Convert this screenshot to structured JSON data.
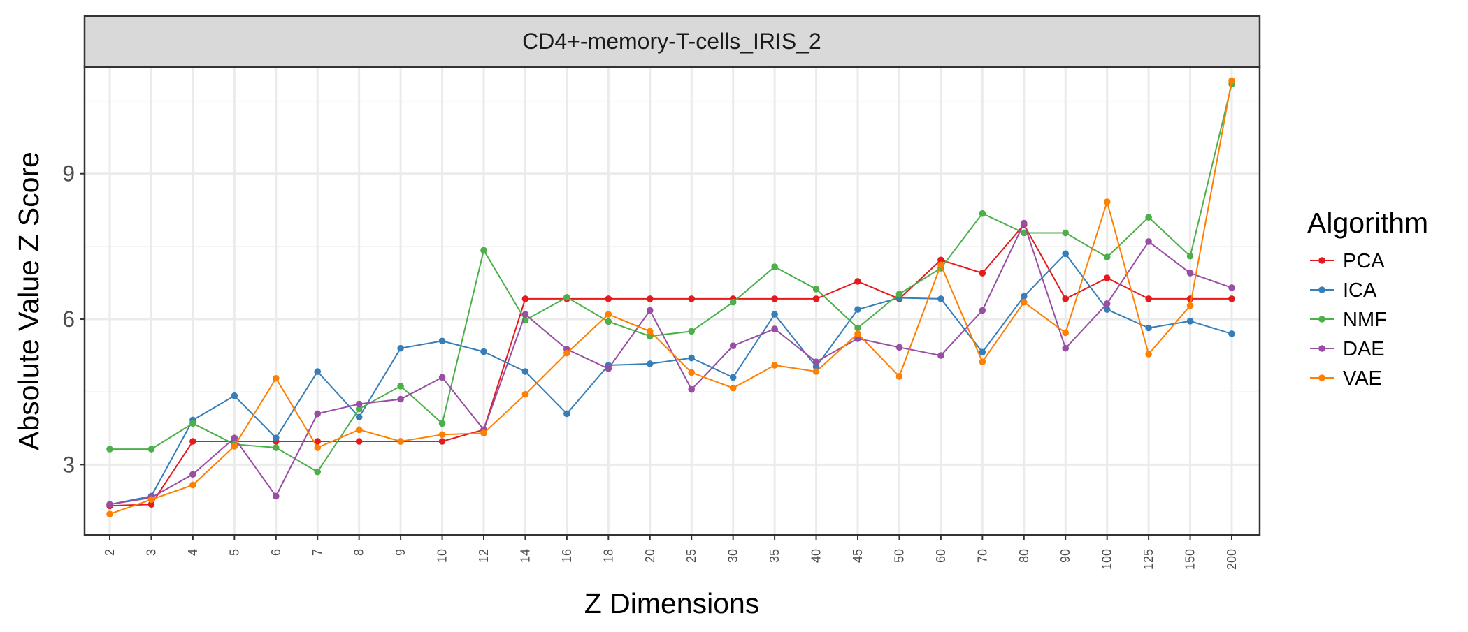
{
  "chart_data": {
    "type": "line",
    "title": "CD4+-memory-T-cells_IRIS_2",
    "xlabel": "Z Dimensions",
    "ylabel": "Absolute Value Z Score",
    "categories": [
      "2",
      "3",
      "4",
      "5",
      "6",
      "7",
      "8",
      "9",
      "10",
      "12",
      "14",
      "16",
      "18",
      "20",
      "25",
      "30",
      "35",
      "40",
      "45",
      "50",
      "60",
      "70",
      "80",
      "90",
      "100",
      "125",
      "150",
      "200"
    ],
    "ylim": [
      1.55,
      11.2
    ],
    "yticks": [
      3,
      6,
      9
    ],
    "grid": true,
    "legend": {
      "title": "Algorithm",
      "position": "right"
    },
    "series": [
      {
        "name": "PCA",
        "color": "#e41a1c",
        "values": [
          2.15,
          2.18,
          3.48,
          3.48,
          3.48,
          3.48,
          3.48,
          3.48,
          3.48,
          3.72,
          6.42,
          6.42,
          6.42,
          6.42,
          6.42,
          6.42,
          6.42,
          6.42,
          6.78,
          6.42,
          7.22,
          6.95,
          7.95,
          6.42,
          6.85,
          6.42,
          6.42,
          6.42
        ]
      },
      {
        "name": "ICA",
        "color": "#377eb8",
        "values": [
          2.18,
          2.35,
          3.92,
          4.42,
          3.55,
          4.92,
          3.98,
          5.4,
          5.55,
          5.33,
          4.92,
          4.05,
          5.05,
          5.08,
          5.2,
          4.8,
          6.1,
          5.02,
          6.2,
          6.44,
          6.42,
          5.32,
          6.47,
          7.35,
          6.2,
          5.82,
          5.96,
          5.7
        ]
      },
      {
        "name": "NMF",
        "color": "#4daf4a",
        "values": [
          3.32,
          3.32,
          3.85,
          3.42,
          3.35,
          2.85,
          4.15,
          4.62,
          3.85,
          7.42,
          5.98,
          6.45,
          5.95,
          5.65,
          5.75,
          6.35,
          7.08,
          6.62,
          5.82,
          6.52,
          7.05,
          8.18,
          7.78,
          7.78,
          7.28,
          8.1,
          7.3,
          10.85
        ]
      },
      {
        "name": "DAE",
        "color": "#984ea3",
        "values": [
          2.18,
          2.32,
          2.8,
          3.55,
          2.35,
          4.05,
          4.25,
          4.35,
          4.8,
          3.72,
          6.1,
          5.38,
          4.98,
          6.18,
          4.55,
          5.45,
          5.8,
          5.12,
          5.6,
          5.42,
          5.25,
          6.18,
          7.98,
          5.4,
          6.32,
          7.6,
          6.95,
          6.65
        ]
      },
      {
        "name": "VAE",
        "color": "#ff7f00",
        "values": [
          1.98,
          2.28,
          2.58,
          3.38,
          4.78,
          3.35,
          3.72,
          3.48,
          3.62,
          3.65,
          4.45,
          5.3,
          6.1,
          5.75,
          4.9,
          4.58,
          5.05,
          4.92,
          5.7,
          4.82,
          7.12,
          5.12,
          6.35,
          5.72,
          8.42,
          5.28,
          6.28,
          10.92
        ]
      }
    ]
  }
}
